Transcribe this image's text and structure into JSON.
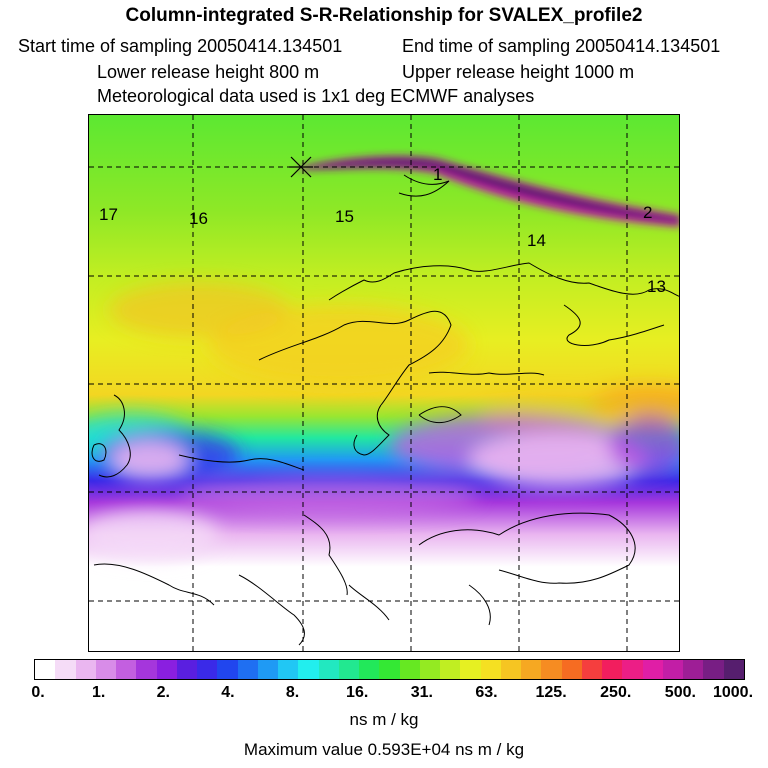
{
  "header": {
    "title": "Column-integrated S-R-Relationship for SVALEX_profile2",
    "start_time": "Start time of sampling 20050414.134501",
    "end_time": "End time of sampling 20050414.134501",
    "lower_height": "Lower release height  800 m",
    "upper_height": "Upper release height 1000 m",
    "met_data": "Meteorological data used is 1x1 deg ECMWF analyses"
  },
  "map": {
    "release_marker": "release-point-cross-icon",
    "hour_labels": [
      "17",
      "16",
      "15",
      "14",
      "13",
      "2",
      "1"
    ]
  },
  "colorbar": {
    "tick_labels": [
      "0.",
      "1.",
      "2.",
      "4.",
      "8.",
      "16.",
      "31.",
      "63.",
      "125.",
      "250.",
      "500.",
      "1000."
    ],
    "units": "ns m / kg",
    "colors": [
      "#ffffff",
      "#f5dcf7",
      "#eab6f0",
      "#d88ce8",
      "#c35fe0",
      "#a536dc",
      "#8a1fe0",
      "#5a1fe0",
      "#3a2ae8",
      "#2146ee",
      "#1f6ff2",
      "#1f9af4",
      "#21c7f4",
      "#22eeee",
      "#22e8c0",
      "#22e890",
      "#22e85a",
      "#34e834",
      "#66e822",
      "#94ea22",
      "#c0ee22",
      "#e6f022",
      "#f5e022",
      "#f6c522",
      "#f6a822",
      "#f68c22",
      "#f66c22",
      "#f53e3e",
      "#f21e5e",
      "#ec1e86",
      "#e01ea6",
      "#c21ea6",
      "#9e1e96",
      "#781e84",
      "#561e6e"
    ]
  },
  "footer": {
    "max_value": "Maximum value  0.593E+04 ns m / kg"
  }
}
